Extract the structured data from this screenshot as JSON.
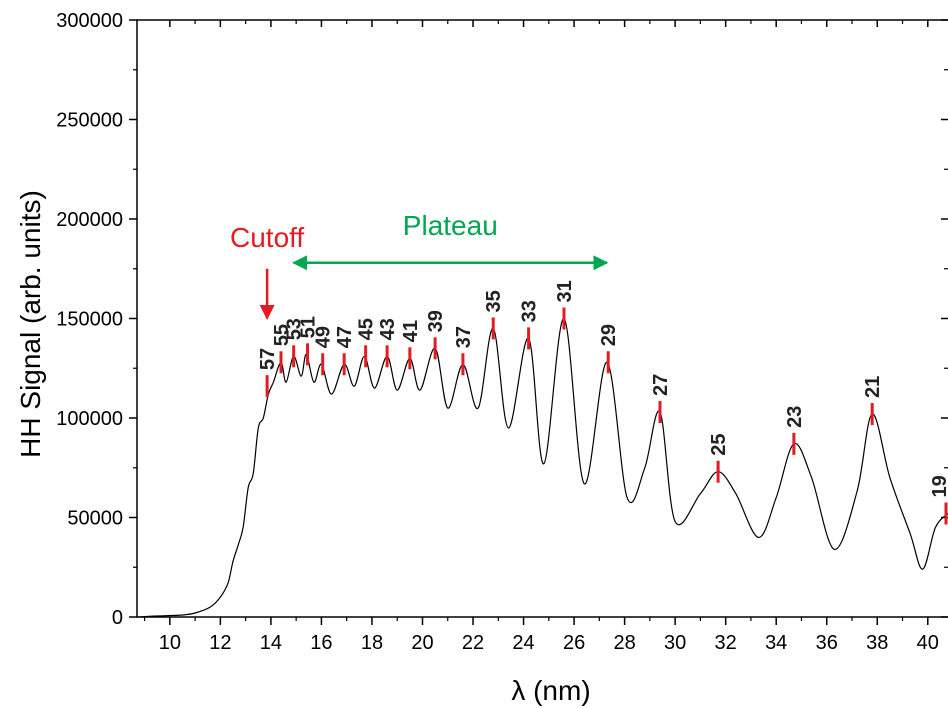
{
  "chart_data": {
    "type": "line",
    "xlabel": "λ (nm)",
    "ylabel": "HH Signal (arb. units)",
    "xlim": [
      8.7,
      40.8
    ],
    "ylim": [
      0,
      300000
    ],
    "x_ticks": [
      10,
      12,
      14,
      16,
      18,
      20,
      22,
      24,
      26,
      28,
      30,
      32,
      34,
      36,
      38,
      40
    ],
    "y_ticks": [
      0,
      50000,
      100000,
      150000,
      200000,
      250000,
      300000
    ],
    "grid": false,
    "colors": {
      "line": "#000000",
      "markers": "#e31b23",
      "cutoff": "#e31b23",
      "plateau": "#00a651"
    },
    "series": [
      {
        "points": [
          [
            8.8,
            0
          ],
          [
            9.5,
            500
          ],
          [
            10.5,
            1000
          ],
          [
            11.0,
            2000
          ],
          [
            11.6,
            5000
          ],
          [
            12.0,
            10000
          ],
          [
            12.3,
            17000
          ],
          [
            12.5,
            28000
          ],
          [
            12.7,
            36000
          ],
          [
            12.9,
            45000
          ],
          [
            13.1,
            65000
          ],
          [
            13.3,
            72000
          ],
          [
            13.5,
            95000
          ],
          [
            13.7,
            100000
          ],
          [
            13.9,
            112000
          ],
          [
            14.1,
            118000
          ],
          [
            14.4,
            128000
          ],
          [
            14.6,
            118000
          ],
          [
            14.9,
            131000
          ],
          [
            15.2,
            121000
          ],
          [
            15.4,
            132000
          ],
          [
            15.7,
            118000
          ],
          [
            16.0,
            127000
          ],
          [
            16.4,
            112000
          ],
          [
            16.9,
            127000
          ],
          [
            17.3,
            116000
          ],
          [
            17.7,
            131000
          ],
          [
            18.1,
            115000
          ],
          [
            18.6,
            131000
          ],
          [
            19.0,
            114000
          ],
          [
            19.5,
            130000
          ],
          [
            19.9,
            114000
          ],
          [
            20.5,
            135000
          ],
          [
            21.0,
            105000
          ],
          [
            21.6,
            127000
          ],
          [
            22.2,
            105000
          ],
          [
            22.8,
            145000
          ],
          [
            23.4,
            95000
          ],
          [
            24.2,
            140000
          ],
          [
            24.8,
            77000
          ],
          [
            25.6,
            150000
          ],
          [
            26.4,
            67000
          ],
          [
            27.3,
            128000
          ],
          [
            28.1,
            60000
          ],
          [
            28.8,
            75000
          ],
          [
            29.4,
            103000
          ],
          [
            30.0,
            48000
          ],
          [
            31.0,
            62000
          ],
          [
            31.7,
            73000
          ],
          [
            32.4,
            62000
          ],
          [
            33.3,
            40000
          ],
          [
            34.0,
            60000
          ],
          [
            34.7,
            87000
          ],
          [
            35.4,
            70000
          ],
          [
            36.3,
            34000
          ],
          [
            37.2,
            63000
          ],
          [
            37.8,
            102000
          ],
          [
            38.5,
            70000
          ],
          [
            39.3,
            42000
          ],
          [
            39.8,
            24000
          ],
          [
            40.3,
            45000
          ],
          [
            40.8,
            52000
          ]
        ]
      }
    ],
    "harmonics": [
      {
        "order": "57",
        "x": 13.85,
        "y": 116000
      },
      {
        "order": "55",
        "x": 14.4,
        "y": 128000
      },
      {
        "order": "53",
        "x": 14.9,
        "y": 131000
      },
      {
        "order": "51",
        "x": 15.45,
        "y": 132000
      },
      {
        "order": "49",
        "x": 16.05,
        "y": 127000
      },
      {
        "order": "47",
        "x": 16.9,
        "y": 127000
      },
      {
        "order": "45",
        "x": 17.75,
        "y": 131000
      },
      {
        "order": "43",
        "x": 18.6,
        "y": 131000
      },
      {
        "order": "41",
        "x": 19.5,
        "y": 130000
      },
      {
        "order": "39",
        "x": 20.5,
        "y": 135000
      },
      {
        "order": "37",
        "x": 21.6,
        "y": 127000
      },
      {
        "order": "35",
        "x": 22.8,
        "y": 145000
      },
      {
        "order": "33",
        "x": 24.2,
        "y": 140000
      },
      {
        "order": "31",
        "x": 25.6,
        "y": 150000
      },
      {
        "order": "29",
        "x": 27.35,
        "y": 128000
      },
      {
        "order": "27",
        "x": 29.4,
        "y": 103000
      },
      {
        "order": "25",
        "x": 31.7,
        "y": 73000
      },
      {
        "order": "23",
        "x": 34.7,
        "y": 87000
      },
      {
        "order": "21",
        "x": 37.8,
        "y": 102000
      },
      {
        "order": "19",
        "x": 40.75,
        "y": 52000
      }
    ],
    "annotations": {
      "cutoff": {
        "text": "Cutoff",
        "x": 13.85,
        "y_from": 175000,
        "y_to": 150000
      },
      "plateau": {
        "text": "Plateau",
        "x_from": 14.9,
        "x_to": 27.3,
        "y": 178000
      }
    }
  }
}
